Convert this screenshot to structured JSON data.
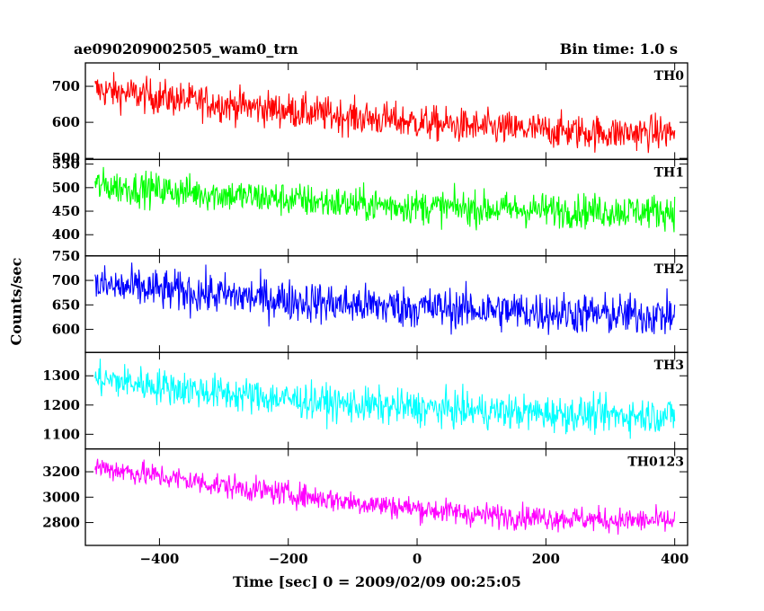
{
  "header": {
    "title": "ae090209002505_wam0_trn",
    "bin_time": "Bin time: 1.0 s"
  },
  "chart_data": {
    "type": "line",
    "title": "ae090209002505_wam0_trn",
    "xlabel": "Time [sec] 0 = 2009/02/09 00:25:05",
    "ylabel": "Counts/sec",
    "xlim": [
      -515,
      420
    ],
    "x_ticks": [
      -400,
      -200,
      0,
      200,
      400
    ],
    "grid": false,
    "legend": "none",
    "x_range": [
      -500,
      400
    ],
    "panels": [
      {
        "name": "TH0",
        "color": "#ff0000",
        "ylim": [
          497,
          765
        ],
        "y_ticks": [
          500,
          600,
          700
        ],
        "trend": {
          "x": [
            -500,
            -300,
            -100,
            100,
            300,
            400
          ],
          "y": [
            690,
            650,
            615,
            585,
            570,
            572
          ]
        },
        "noise_amplitude": 40
      },
      {
        "name": "TH1",
        "color": "#00ff00",
        "ylim": [
          355,
          560
        ],
        "y_ticks": [
          400,
          450,
          500,
          550
        ],
        "trend": {
          "x": [
            -500,
            -300,
            -100,
            100,
            300,
            400
          ],
          "y": [
            505,
            485,
            465,
            455,
            450,
            450
          ]
        },
        "noise_amplitude": 30
      },
      {
        "name": "TH2",
        "color": "#0000ff",
        "ylim": [
          553,
          750
        ],
        "y_ticks": [
          600,
          650,
          700,
          750
        ],
        "trend": {
          "x": [
            -500,
            -300,
            -100,
            100,
            300,
            400
          ],
          "y": [
            690,
            670,
            650,
            640,
            630,
            628
          ]
        },
        "noise_amplitude": 35
      },
      {
        "name": "TH3",
        "color": "#00ffff",
        "ylim": [
          1050,
          1380
        ],
        "y_ticks": [
          1100,
          1200,
          1300
        ],
        "trend": {
          "x": [
            -500,
            -300,
            -100,
            100,
            300,
            400
          ],
          "y": [
            1290,
            1240,
            1200,
            1180,
            1165,
            1165
          ]
        },
        "noise_amplitude": 50
      },
      {
        "name": "TH0123",
        "color": "#ff00ff",
        "ylim": [
          2620,
          3380
        ],
        "y_ticks": [
          2800,
          3000,
          3200
        ],
        "trend": {
          "x": [
            -500,
            -300,
            -100,
            100,
            300,
            400
          ],
          "y": [
            3240,
            3090,
            2960,
            2860,
            2820,
            2810
          ]
        },
        "noise_amplitude": 80
      }
    ]
  }
}
